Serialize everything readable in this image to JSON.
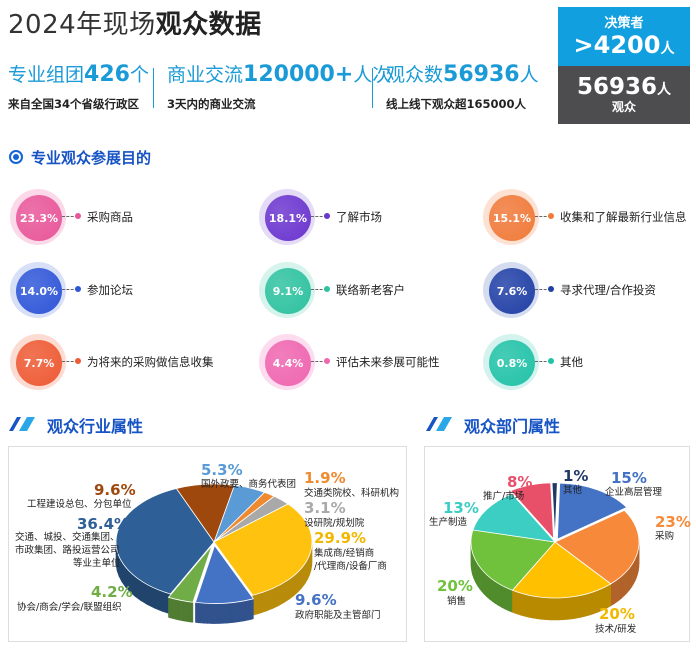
{
  "header": {
    "title_prefix": "2024年现场",
    "title_bold": "观众数据"
  },
  "stats": [
    {
      "label": "专业组团",
      "number": "426",
      "unit": "个",
      "sub": "来自全国34个省级行政区"
    },
    {
      "label": "商业交流",
      "number": "120000+",
      "unit": "人次",
      "sub": "3天内的商业交流"
    },
    {
      "label": "观众数",
      "number": "56936",
      "unit": "人",
      "sub": "线上线下观众超165000人"
    }
  ],
  "boxes": {
    "decision_label": "决策者",
    "decision_value": ">4200",
    "decision_unit": "人",
    "audience_value": "56936",
    "audience_unit": "人",
    "audience_label": "观众"
  },
  "purposes": {
    "title": "专业观众参展目的",
    "items": [
      {
        "pct": "23.3%",
        "label": "采购商品",
        "color": "#e8579a",
        "halo": "#fbd9e8"
      },
      {
        "pct": "18.1%",
        "label": "了解市场",
        "color": "#6b35cf",
        "halo": "#e4dbf7"
      },
      {
        "pct": "15.1%",
        "label": "收集和了解最新行业信息",
        "color": "#f07a3a",
        "halo": "#fde1d2"
      },
      {
        "pct": "14.0%",
        "label": "参加论坛",
        "color": "#2f56d8",
        "halo": "#d8e0f8"
      },
      {
        "pct": "9.1%",
        "label": "联络新老客户",
        "color": "#2ec2a0",
        "halo": "#d6f3ec"
      },
      {
        "pct": "7.6%",
        "label": "寻求代理/合作投资",
        "color": "#2140a6",
        "halo": "#d6dcf0"
      },
      {
        "pct": "7.7%",
        "label": "为将来的采购做信息收集",
        "color": "#ee5a34",
        "halo": "#fcdcd2"
      },
      {
        "pct": "4.4%",
        "label": "评估未来参展可能性",
        "color": "#ef66b0",
        "halo": "#fcdcee"
      },
      {
        "pct": "0.8%",
        "label": "其他",
        "color": "#22c2a8",
        "halo": "#d4f3ee"
      }
    ]
  },
  "industry": {
    "title": "观众行业属性",
    "labels": {
      "a_pct": "5.3%",
      "a_txt": "国外政要、商务代表团",
      "b_pct": "1.9%",
      "b_txt": "交通类院校、科研机构",
      "c_pct": "3.1%",
      "c_txt": "设研院/规划院",
      "d_pct": "29.9%",
      "d_txt1": "集成商/经销商",
      "d_txt2": "/代理商/设备厂商",
      "e_pct": "9.6%",
      "e_txt": "政府职能及主管部门",
      "f_pct": "4.2%",
      "f_txt": "协会/商会/学会/联盟组织",
      "g_pct": "36.4%",
      "g_txt1": "交通、城投、交通集团、",
      "g_txt2": "市政集团、路投运营公司",
      "g_txt3": "等业主单位",
      "h_pct": "9.6%",
      "h_txt": "工程建设总包、分包单位"
    }
  },
  "chart_data": [
    {
      "type": "pie",
      "title": "观众行业属性",
      "slices": [
        {
          "label": "国外政要、商务代表团",
          "value": 5.3,
          "color": "#5b9bd5"
        },
        {
          "label": "交通类院校、科研机构",
          "value": 1.9,
          "color": "#f08a30"
        },
        {
          "label": "设研院/规划院",
          "value": 3.1,
          "color": "#a9a9a9"
        },
        {
          "label": "集成商/经销商/代理商/设备厂商",
          "value": 29.9,
          "color": "#ffc20e"
        },
        {
          "label": "政府职能及主管部门",
          "value": 9.6,
          "color": "#4472c4"
        },
        {
          "label": "协会/商会/学会/联盟组织",
          "value": 4.2,
          "color": "#70ad47"
        },
        {
          "label": "交通、城投、交通集团、市政集团、路投运营公司等业主单位",
          "value": 36.4,
          "color": "#2e5f96"
        },
        {
          "label": "工程建设总包、分包单位",
          "value": 9.6,
          "color": "#9e480e"
        }
      ]
    },
    {
      "type": "pie",
      "title": "观众部门属性",
      "slices": [
        {
          "label": "其他",
          "value": 1,
          "color": "#203864"
        },
        {
          "label": "企业高层管理",
          "value": 15,
          "color": "#4472c4"
        },
        {
          "label": "采购",
          "value": 23,
          "color": "#f6893a"
        },
        {
          "label": "技术/研发",
          "value": 20,
          "color": "#ffc000"
        },
        {
          "label": "销售",
          "value": 20,
          "color": "#70c23d"
        },
        {
          "label": "生产制造",
          "value": 13,
          "color": "#3ccdc3"
        },
        {
          "label": "推广/市场",
          "value": 8,
          "color": "#e8506a"
        }
      ]
    }
  ],
  "department": {
    "title": "观众部门属性",
    "labels": {
      "a_pct": "1%",
      "a_txt": "其他",
      "b_pct": "15%",
      "b_txt": "企业高层管理",
      "c_pct": "23%",
      "c_txt": "采购",
      "d_pct": "20%",
      "d_txt": "技术/研发",
      "e_pct": "20%",
      "e_txt": "销售",
      "f_pct": "13%",
      "f_txt": "生产制造",
      "g_pct": "8%",
      "g_txt": "推广/市场"
    }
  }
}
